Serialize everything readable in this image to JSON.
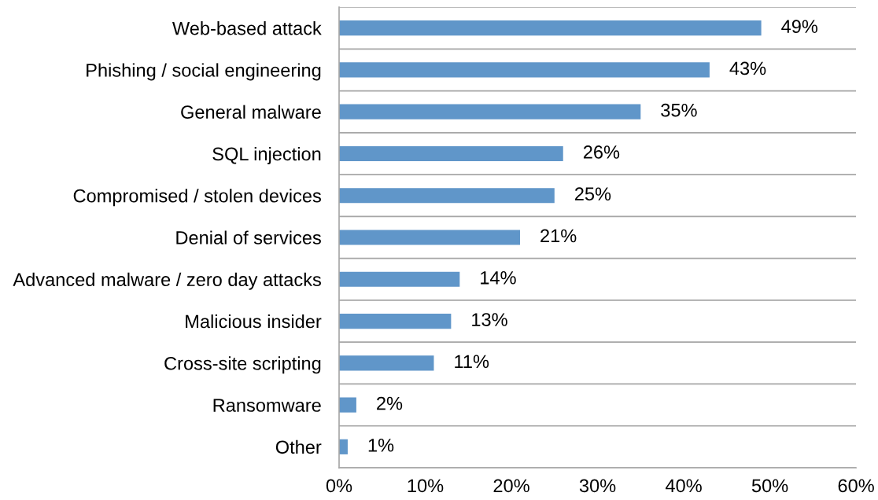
{
  "chart_data": {
    "type": "bar",
    "orientation": "horizontal",
    "categories": [
      "Web-based attack",
      "Phishing / social engineering",
      "General malware",
      "SQL injection",
      "Compromised / stolen devices",
      "Denial of services",
      "Advanced malware / zero day attacks",
      "Malicious insider",
      "Cross-site scripting",
      "Ransomware",
      "Other"
    ],
    "values": [
      49,
      43,
      35,
      26,
      25,
      21,
      14,
      13,
      11,
      2,
      1
    ],
    "value_labels": [
      "49%",
      "43%",
      "35%",
      "26%",
      "25%",
      "21%",
      "14%",
      "13%",
      "11%",
      "2%",
      "1%"
    ],
    "color": "#6096c9",
    "xlim": [
      0,
      60
    ],
    "xticks": [
      {
        "value": 0,
        "label": "0%"
      },
      {
        "value": 10,
        "label": "10%"
      },
      {
        "value": 20,
        "label": "20%"
      },
      {
        "value": 30,
        "label": "30%"
      },
      {
        "value": 40,
        "label": "40%"
      },
      {
        "value": 50,
        "label": "50%"
      },
      {
        "value": 60,
        "label": "60%"
      }
    ],
    "grid": "y"
  }
}
